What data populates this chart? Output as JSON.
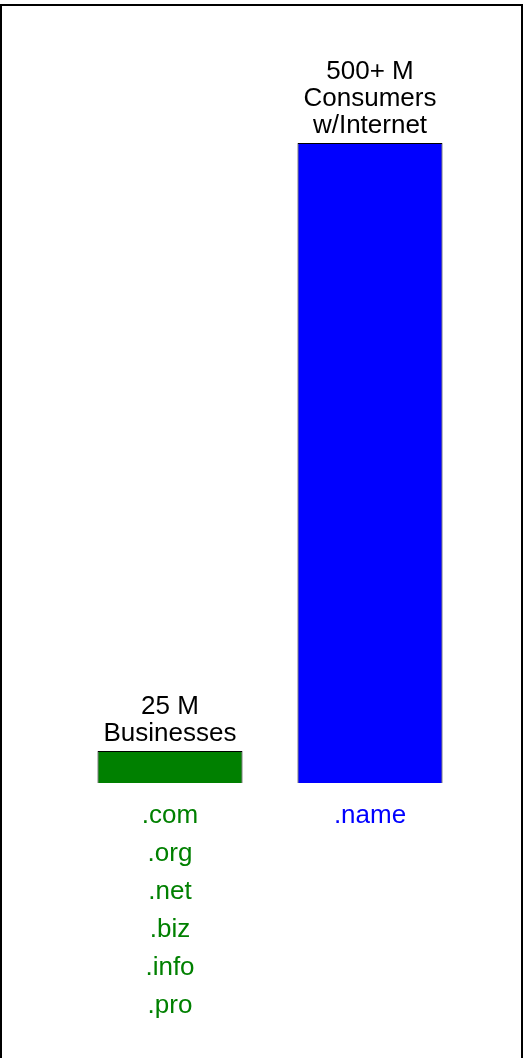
{
  "chart_data": {
    "type": "bar",
    "categories": [
      ".com\n.org\n.net\n.biz\n.info\n.pro",
      ".name"
    ],
    "values": [
      25,
      500
    ],
    "colors": [
      "#008000",
      "#0000ff"
    ],
    "value_labels": [
      "25 M\nBusinesses",
      "500+ M\nConsumers\nw/Internet"
    ],
    "grid": false,
    "legend": false,
    "tick_labels": "x"
  }
}
